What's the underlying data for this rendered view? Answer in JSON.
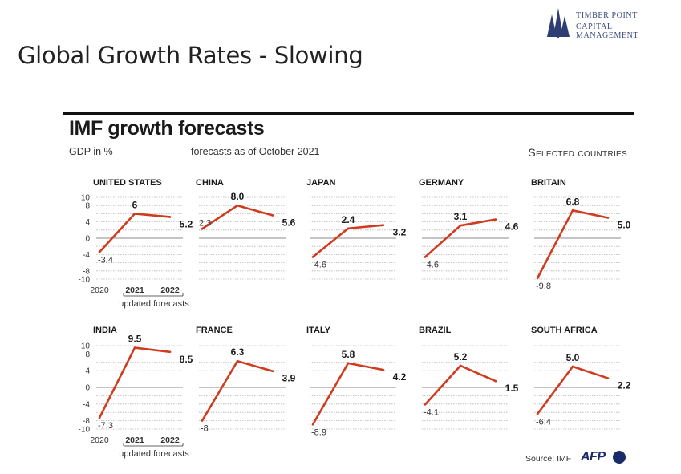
{
  "slide": {
    "title": "Global Growth Rates - Slowing",
    "logo": {
      "line1": "TIMBER POINT",
      "line2": "CAPITAL MANAGEMENT",
      "icon": "pine-trees-icon"
    }
  },
  "graphic": {
    "title": "IMF growth forecasts",
    "unit": "GDP in %",
    "as_of": "forecasts as of October 2021",
    "selected": "Selected countries",
    "source": "Source: IMF",
    "credit": "AFP"
  },
  "chart_data": {
    "type": "line",
    "x": [
      "2020",
      "2021",
      "2022"
    ],
    "updated_label": "updated forecasts",
    "y_ticks": [
      10,
      8,
      4,
      0,
      -4,
      -8,
      -10
    ],
    "ylim": [
      -10,
      10
    ],
    "grid": true,
    "line_color": "#d03b1f",
    "countries": [
      {
        "name": "UNITED STATES",
        "values": [
          -3.4,
          6,
          5.2
        ],
        "labels": [
          "-3.4",
          "6",
          "5.2"
        ]
      },
      {
        "name": "CHINA",
        "values": [
          2.3,
          8.0,
          5.6
        ],
        "labels": [
          "2.3",
          "8.0",
          "5.6"
        ]
      },
      {
        "name": "JAPAN",
        "values": [
          -4.6,
          2.4,
          3.2
        ],
        "labels": [
          "-4.6",
          "2.4",
          "3.2"
        ]
      },
      {
        "name": "GERMANY",
        "values": [
          -4.6,
          3.1,
          4.6
        ],
        "labels": [
          "-4.6",
          "3.1",
          "4.6"
        ]
      },
      {
        "name": "BRITAIN",
        "values": [
          -9.8,
          6.8,
          5.0
        ],
        "labels": [
          "-9.8",
          "6.8",
          "5.0"
        ]
      },
      {
        "name": "INDIA",
        "values": [
          -7.3,
          9.5,
          8.5
        ],
        "labels": [
          "-7.3",
          "9.5",
          "8.5"
        ]
      },
      {
        "name": "FRANCE",
        "values": [
          -8,
          6.3,
          3.9
        ],
        "labels": [
          "-8",
          "6.3",
          "3.9"
        ]
      },
      {
        "name": "ITALY",
        "values": [
          -8.9,
          5.8,
          4.2
        ],
        "labels": [
          "-8.9",
          "5.8",
          "4.2"
        ]
      },
      {
        "name": "BRAZIL",
        "values": [
          -4.1,
          5.2,
          1.5
        ],
        "labels": [
          "-4.1",
          "5.2",
          "1.5"
        ]
      },
      {
        "name": "SOUTH AFRICA",
        "values": [
          -6.4,
          5.0,
          2.2
        ],
        "labels": [
          "-6.4",
          "5.0",
          "2.2"
        ]
      }
    ]
  }
}
